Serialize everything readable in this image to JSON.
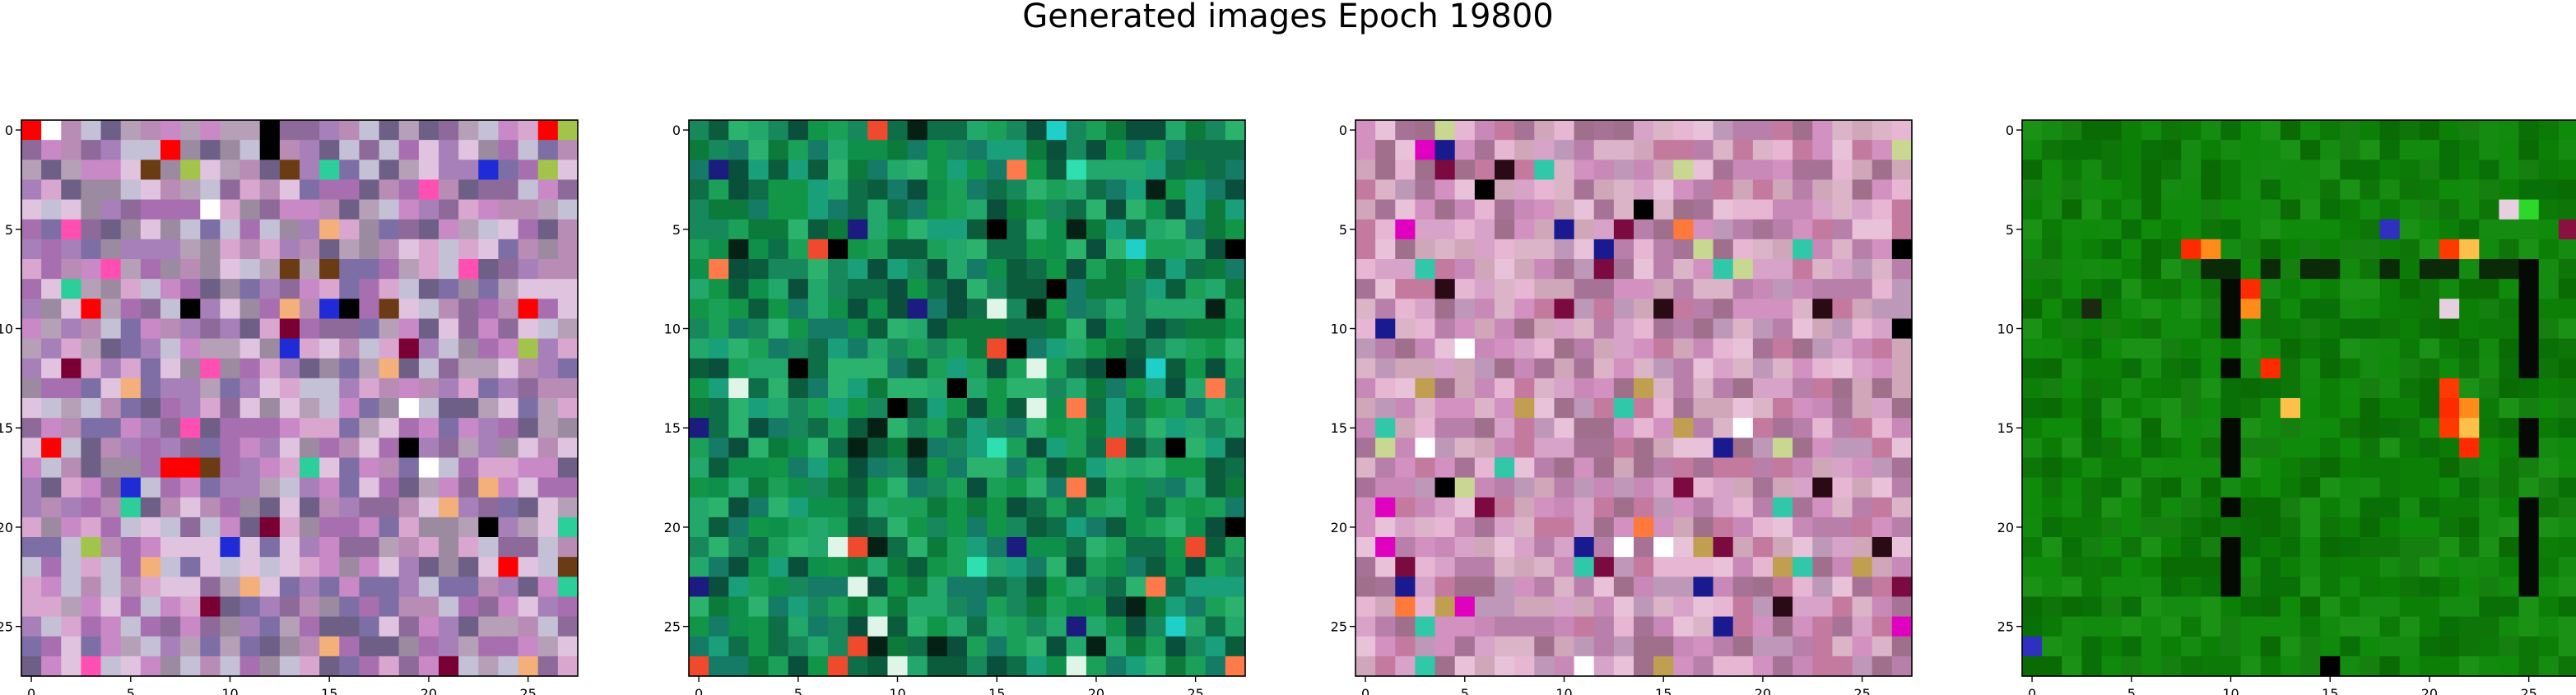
{
  "figure": {
    "title": "Generated images Epoch 19800"
  },
  "chart_data": [
    {
      "type": "heatmap",
      "x": [
        0,
        5,
        10,
        15,
        20,
        25
      ],
      "y": [
        0,
        5,
        10,
        15,
        20,
        25
      ],
      "xlim": [
        -0.5,
        27.5
      ],
      "ylim": [
        27.5,
        -0.5
      ],
      "grid": false,
      "shape": [
        28,
        28
      ],
      "palette": [
        "#8e6a9a",
        "#b88cb4",
        "#a77fb9",
        "#d9a6cf",
        "#b6a0b8",
        "#7d6fa6",
        "#c889c6",
        "#9b8aa0",
        "#e0c3de",
        "#6e5f86",
        "#c4c0d6",
        "#a86fb0"
      ],
      "accents": [
        "#000000",
        "#ffffff",
        "#ff0000",
        "#1f2bd6",
        "#7a0034",
        "#2ccf9a",
        "#f3b07a",
        "#6b3c14",
        "#ff4fb3",
        "#a3c44a"
      ]
    },
    {
      "type": "heatmap",
      "x": [
        0,
        5,
        10,
        15,
        20,
        25
      ],
      "y": [
        0,
        5,
        10,
        15,
        20,
        25
      ],
      "xlim": [
        -0.5,
        27.5
      ],
      "ylim": [
        27.5,
        -0.5
      ],
      "grid": false,
      "shape": [
        28,
        28
      ],
      "palette": [
        "#0b7a3a",
        "#119648",
        "#0d6e48",
        "#1ba157",
        "#17875c",
        "#0a5c3c",
        "#23a86b",
        "#0e8f4a",
        "#157a66",
        "#2bb36e",
        "#0a4f3b",
        "#19a07a"
      ],
      "accents": [
        "#000000",
        "#ff7a4a",
        "#f04a2e",
        "#1b1b80",
        "#2ee0b0",
        "#dff5e8",
        "#052015",
        "#1fd0c8"
      ]
    },
    {
      "type": "heatmap",
      "x": [
        0,
        5,
        10,
        15,
        20,
        25
      ],
      "y": [
        0,
        5,
        10,
        15,
        20,
        25
      ],
      "xlim": [
        -0.5,
        27.5
      ],
      "ylim": [
        27.5,
        -0.5
      ],
      "grid": false,
      "shape": [
        28,
        28
      ],
      "palette": [
        "#d7a3c8",
        "#c889b9",
        "#e6b6d2",
        "#b77fa9",
        "#d291c0",
        "#cfa7b8",
        "#a67295",
        "#e8c2d8",
        "#c47a9e",
        "#bd98b8",
        "#dcb4c8",
        "#9f6f8c"
      ],
      "accents": [
        "#000000",
        "#2a0a14",
        "#7a0a40",
        "#ffffff",
        "#e000c0",
        "#1a1a90",
        "#c0a050",
        "#30c8a8",
        "#ff7a3a",
        "#c8d890"
      ]
    },
    {
      "type": "heatmap",
      "x": [
        0,
        5,
        10,
        15,
        20,
        25
      ],
      "y": [
        0,
        5,
        10,
        15,
        20,
        25
      ],
      "xlim": [
        -0.5,
        27.5
      ],
      "ylim": [
        27.5,
        -0.5
      ],
      "grid": false,
      "shape": [
        28,
        28
      ],
      "palette": [
        "#0b7a07",
        "#0f8a0a",
        "#157f10",
        "#0a6b05",
        "#1b9216",
        "#0e7508",
        "#128a0d",
        "#097008",
        "#168b12",
        "#0c8006"
      ],
      "accents": [
        "#000000",
        "#ff2b00",
        "#ff8c1a",
        "#ffc04a",
        "#3030c0",
        "#e6d0e0",
        "#7a4a10",
        "#2ed82a",
        "#8a1040",
        "#1a2a10"
      ],
      "features": {
        "dark_columns": [
          10,
          25
        ],
        "dark_row": 6,
        "hot_spots": [
          [
            6,
            8
          ],
          [
            6,
            9
          ],
          [
            6,
            21
          ],
          [
            6,
            22
          ],
          [
            8,
            11
          ],
          [
            9,
            11
          ],
          [
            13,
            21
          ],
          [
            14,
            13
          ],
          [
            14,
            21
          ],
          [
            14,
            22
          ],
          [
            15,
            21
          ],
          [
            15,
            22
          ],
          [
            16,
            22
          ]
        ]
      }
    }
  ]
}
